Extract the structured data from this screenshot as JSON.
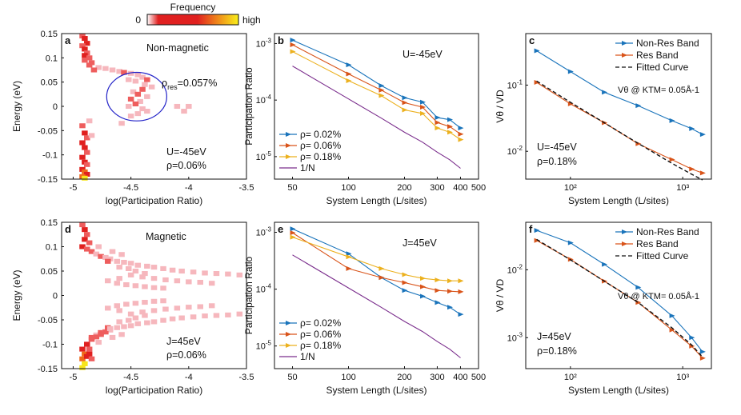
{
  "colorbar": {
    "title": "Frequency",
    "low": "0",
    "high": "high"
  },
  "colors": {
    "blue": "#1a74bb",
    "orange": "#d9541a",
    "yellow": "#ecb11f",
    "purple": "#7a2d8c",
    "circle": "#2323c8"
  },
  "chart_data": [
    {
      "panel": "a",
      "type": "heatmap",
      "xlabel": "log(Participation Ratio)",
      "ylabel": "Energy (eV)",
      "xlim": [
        -5.1,
        -3.5
      ],
      "ylim": [
        -0.15,
        0.15
      ],
      "xticks": [
        "-5",
        "-4.5",
        "-4",
        "-3.5"
      ],
      "xtick_values": [
        -5,
        -4.5,
        -4,
        -3.5
      ],
      "yticks": [
        "0.15",
        "0.1",
        "0.05",
        "0",
        "-0.05",
        "-0.1",
        "-0.15"
      ],
      "ytick_values": [
        0.15,
        0.1,
        0.05,
        0,
        -0.05,
        -0.1,
        -0.15
      ],
      "title_text": "Non-magnetic",
      "rho_res_label": "ρ",
      "rho_res_sub": "res",
      "rho_res_value": "=0.057%",
      "params": [
        "U=-45eV",
        "ρ=0.06%"
      ],
      "circle": {
        "x": -4.45,
        "y": 0.02,
        "rx": 0.26,
        "ry": 0.05
      },
      "cells": [
        [
          -4.92,
          0.145,
          2
        ],
        [
          -4.9,
          0.14,
          3
        ],
        [
          -4.88,
          0.13,
          3
        ],
        [
          -4.92,
          0.125,
          2
        ],
        [
          -4.9,
          0.118,
          3
        ],
        [
          -4.88,
          0.11,
          2
        ],
        [
          -4.9,
          0.105,
          3
        ],
        [
          -4.86,
          0.1,
          2
        ],
        [
          -4.9,
          0.095,
          2
        ],
        [
          -4.84,
          0.09,
          2
        ],
        [
          -4.86,
          0.085,
          2
        ],
        [
          -4.78,
          0.08,
          1
        ],
        [
          -4.72,
          0.078,
          1
        ],
        [
          -4.66,
          0.075,
          1
        ],
        [
          -4.82,
          0.075,
          2
        ],
        [
          -4.6,
          0.072,
          1
        ],
        [
          -4.56,
          0.07,
          2
        ],
        [
          -4.5,
          0.068,
          1
        ],
        [
          -4.44,
          0.065,
          1
        ],
        [
          -4.4,
          0.06,
          1
        ],
        [
          -4.36,
          0.055,
          2
        ],
        [
          -4.46,
          0.052,
          1
        ],
        [
          -4.52,
          0.055,
          1
        ],
        [
          -4.38,
          0.045,
          1
        ],
        [
          -4.32,
          0.04,
          1
        ],
        [
          -4.4,
          0.035,
          2
        ],
        [
          -4.48,
          0.03,
          1
        ],
        [
          -4.44,
          0.025,
          2
        ],
        [
          -4.36,
          0.02,
          1
        ],
        [
          -4.5,
          0.015,
          2
        ],
        [
          -4.42,
          0.01,
          1
        ],
        [
          -4.46,
          0.005,
          2
        ],
        [
          -4.52,
          0.0,
          1
        ],
        [
          -4.4,
          -0.005,
          1
        ],
        [
          -4.44,
          -0.015,
          1
        ],
        [
          -4.5,
          -0.02,
          1
        ],
        [
          -4.36,
          -0.01,
          1
        ],
        [
          -4.1,
          0.0,
          1
        ],
        [
          -4.04,
          -0.01,
          1
        ],
        [
          -4.0,
          0.0,
          1
        ],
        [
          -4.58,
          -0.035,
          1
        ],
        [
          -4.92,
          -0.04,
          2
        ],
        [
          -4.9,
          -0.055,
          3
        ],
        [
          -4.88,
          -0.065,
          2
        ],
        [
          -4.92,
          -0.075,
          3
        ],
        [
          -4.9,
          -0.085,
          3
        ],
        [
          -4.88,
          -0.095,
          2
        ],
        [
          -4.92,
          -0.105,
          3
        ],
        [
          -4.9,
          -0.115,
          3
        ],
        [
          -4.88,
          -0.12,
          2
        ],
        [
          -4.92,
          -0.13,
          3
        ],
        [
          -4.9,
          -0.135,
          4
        ],
        [
          -4.88,
          -0.14,
          3
        ],
        [
          -4.92,
          -0.145,
          4
        ],
        [
          -4.9,
          -0.148,
          5
        ],
        [
          -4.86,
          -0.03,
          1
        ],
        [
          -4.84,
          -0.06,
          1
        ]
      ]
    },
    {
      "panel": "b",
      "type": "line",
      "xlabel": "System Length (L/sites)",
      "ylabel": "Participation Ratio",
      "xlim": [
        40,
        500
      ],
      "ylim": [
        4e-06,
        0.0015
      ],
      "scale": "log-log",
      "xticks": [
        "50",
        "100",
        "200",
        "300",
        "400",
        "500"
      ],
      "xtick_values": [
        50,
        100,
        200,
        300,
        400,
        500
      ],
      "yticks": [
        "10-3",
        "10-4",
        "10-5"
      ],
      "ytick_values": [
        0.001,
        0.0001,
        1e-05
      ],
      "annotation": "U=-45eV",
      "x": [
        50,
        100,
        150,
        200,
        250,
        300,
        350,
        400
      ],
      "series": [
        {
          "name": "ρ= 0.02%",
          "color": "blue",
          "marker": true,
          "values": [
            0.00115,
            0.00042,
            0.00018,
            0.00011,
            9.2e-05,
            4.9e-05,
            4.5e-05,
            3.2e-05
          ]
        },
        {
          "name": "ρ= 0.06%",
          "color": "orange",
          "marker": true,
          "values": [
            0.00095,
            0.00029,
            0.00015,
            9e-05,
            7.5e-05,
            4e-05,
            3.4e-05,
            2.5e-05
          ]
        },
        {
          "name": "ρ= 0.18%",
          "color": "yellow",
          "marker": true,
          "values": [
            0.00072,
            0.00022,
            0.00012,
            6.7e-05,
            5.8e-05,
            3.2e-05,
            2.7e-05,
            2e-05
          ]
        },
        {
          "name": "1/N",
          "color": "purple",
          "marker": false,
          "values": [
            0.0004,
            0.000105,
            4.8e-05,
            2.7e-05,
            1.8e-05,
            1.2e-05,
            8.8e-06,
            6.2e-06
          ]
        }
      ]
    },
    {
      "panel": "c",
      "type": "line",
      "xlabel": "System Length (L/sites)",
      "ylabel": "Vθ / VD",
      "xlim": [
        40,
        1800
      ],
      "ylim": [
        0.0038,
        0.6
      ],
      "scale": "log-log",
      "xticks": [
        "10²",
        "10³"
      ],
      "xtick_values": [
        100,
        1000
      ],
      "yticks": [
        "10-1",
        "10-2"
      ],
      "ytick_values": [
        0.1,
        0.01
      ],
      "annotation": "Vθ @ KTM= 0.05Å-1",
      "params": [
        "U=-45eV",
        "ρ=0.18%"
      ],
      "x": [
        50,
        100,
        200,
        400,
        800,
        1200,
        1500
      ],
      "series": [
        {
          "name": "Non-Res Band",
          "color": "blue",
          "marker": true,
          "values": [
            0.33,
            0.16,
            0.078,
            0.049,
            0.029,
            0.022,
            0.018
          ]
        },
        {
          "name": "Res Band",
          "color": "orange",
          "marker": true,
          "values": [
            0.11,
            0.052,
            0.027,
            0.013,
            0.0075,
            0.0054,
            0.0047
          ]
        },
        {
          "name": "Fitted Curve",
          "color": "black",
          "dashed": true,
          "marker": false,
          "values": [
            0.115,
            0.055,
            0.027,
            0.0132,
            0.0066,
            0.0045,
            0.0037
          ]
        }
      ]
    },
    {
      "panel": "d",
      "type": "heatmap",
      "xlabel": "log(Participation Ratio)",
      "ylabel": "Energy (eV)",
      "xlim": [
        -5.1,
        -3.5
      ],
      "ylim": [
        -0.15,
        0.15
      ],
      "xticks": [
        "-5",
        "-4.5",
        "-4",
        "-3.5"
      ],
      "xtick_values": [
        -5,
        -4.5,
        -4,
        -3.5
      ],
      "yticks": [
        "0.15",
        "0.1",
        "0.05",
        "0",
        "-0.05",
        "-0.1",
        "-0.15"
      ],
      "ytick_values": [
        0.15,
        0.1,
        0.05,
        0,
        -0.05,
        -0.1,
        -0.15
      ],
      "title_text": "Magnetic",
      "params": [
        "J=45eV",
        "ρ=0.06%"
      ],
      "cells": []
    },
    {
      "panel": "e",
      "type": "line",
      "xlabel": "System Length (L/sites)",
      "ylabel": "Participation Ratio",
      "xlim": [
        40,
        500
      ],
      "ylim": [
        4e-06,
        0.0015
      ],
      "scale": "log-log",
      "xticks": [
        "50",
        "100",
        "200",
        "300",
        "400",
        "500"
      ],
      "xtick_values": [
        50,
        100,
        200,
        300,
        400,
        500
      ],
      "yticks": [
        "10-3",
        "10-4",
        "10-5"
      ],
      "ytick_values": [
        0.001,
        0.0001,
        1e-05
      ],
      "annotation": "J=45eV",
      "x": [
        50,
        100,
        150,
        200,
        250,
        300,
        350,
        400
      ],
      "series": [
        {
          "name": "ρ= 0.02%",
          "color": "blue",
          "marker": true,
          "values": [
            0.00115,
            0.00042,
            0.00016,
            9.5e-05,
            7.5e-05,
            5.8e-05,
            4.8e-05,
            3.6e-05
          ]
        },
        {
          "name": "ρ= 0.06%",
          "color": "orange",
          "marker": true,
          "values": [
            0.00098,
            0.00023,
            0.00016,
            0.00013,
            0.00011,
            9.5e-05,
            9.2e-05,
            9e-05
          ]
        },
        {
          "name": "ρ= 0.18%",
          "color": "yellow",
          "marker": true,
          "values": [
            0.00082,
            0.00037,
            0.00023,
            0.00018,
            0.000155,
            0.000145,
            0.00014,
            0.00014
          ]
        },
        {
          "name": "1/N",
          "color": "purple",
          "marker": false,
          "values": [
            0.0004,
            0.000105,
            4.8e-05,
            2.7e-05,
            1.8e-05,
            1.2e-05,
            8.8e-06,
            6.2e-06
          ]
        }
      ]
    },
    {
      "panel": "f",
      "type": "line",
      "xlabel": "System Length (L/sites)",
      "ylabel": "Vθ / VD",
      "xlim": [
        40,
        1800
      ],
      "ylim": [
        0.00035,
        0.05
      ],
      "scale": "log-log",
      "xticks": [
        "10²",
        "10³"
      ],
      "xtick_values": [
        100,
        1000
      ],
      "yticks": [
        "10-2",
        "10-3"
      ],
      "ytick_values": [
        0.01,
        0.001
      ],
      "annotation": "Vθ @ KTM= 0.05Å-1",
      "params": [
        "J=45eV",
        "ρ=0.18%"
      ],
      "x": [
        50,
        100,
        200,
        400,
        800,
        1200,
        1500
      ],
      "series": [
        {
          "name": "Non-Res Band",
          "color": "blue",
          "marker": true,
          "values": [
            0.038,
            0.025,
            0.012,
            0.0055,
            0.0021,
            0.001,
            0.00062
          ]
        },
        {
          "name": "Res Band",
          "color": "orange",
          "marker": true,
          "values": [
            0.027,
            0.0142,
            0.0068,
            0.0033,
            0.0013,
            0.00075,
            0.0005
          ]
        },
        {
          "name": "Fitted Curve",
          "color": "black",
          "dashed": true,
          "marker": false,
          "values": [
            0.028,
            0.014,
            0.0068,
            0.0033,
            0.0014,
            0.00078,
            0.00052
          ]
        }
      ]
    }
  ]
}
